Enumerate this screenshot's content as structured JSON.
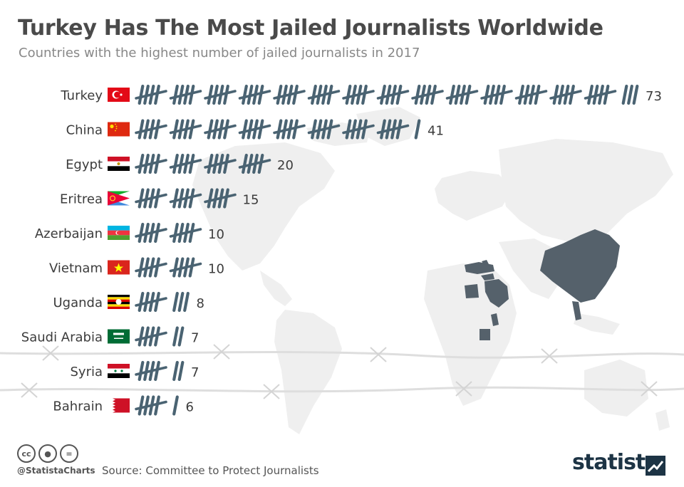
{
  "title": "Turkey Has The Most Jailed Journalists Worldwide",
  "subtitle": "Countries with the highest number of jailed journalists in 2017",
  "source": "Source: Committee to Protect Journalists",
  "handle": "@StatistaCharts",
  "brand": "statista",
  "cc_icons": [
    "cc-icon",
    "by-icon",
    "nd-icon"
  ],
  "colors": {
    "tally": "#4a6372",
    "highlight_countries": "#55616b",
    "map": "#efefef",
    "text": "#3c3c3c"
  },
  "chart_data": {
    "type": "bar",
    "style": "tally marks",
    "categories": [
      "Turkey",
      "China",
      "Egypt",
      "Eritrea",
      "Azerbaijan",
      "Vietnam",
      "Uganda",
      "Saudi Arabia",
      "Syria",
      "Bahrain"
    ],
    "values": [
      73,
      41,
      20,
      15,
      10,
      10,
      8,
      7,
      7,
      6
    ],
    "flags": [
      "turkey-flag-icon",
      "china-flag-icon",
      "egypt-flag-icon",
      "eritrea-flag-icon",
      "azerbaijan-flag-icon",
      "vietnam-flag-icon",
      "uganda-flag-icon",
      "saudi-arabia-flag-icon",
      "syria-flag-icon",
      "bahrain-flag-icon"
    ],
    "title": "Turkey Has The Most Jailed Journalists Worldwide",
    "xlabel": "",
    "ylabel": "",
    "grid": false,
    "legend": "none"
  }
}
